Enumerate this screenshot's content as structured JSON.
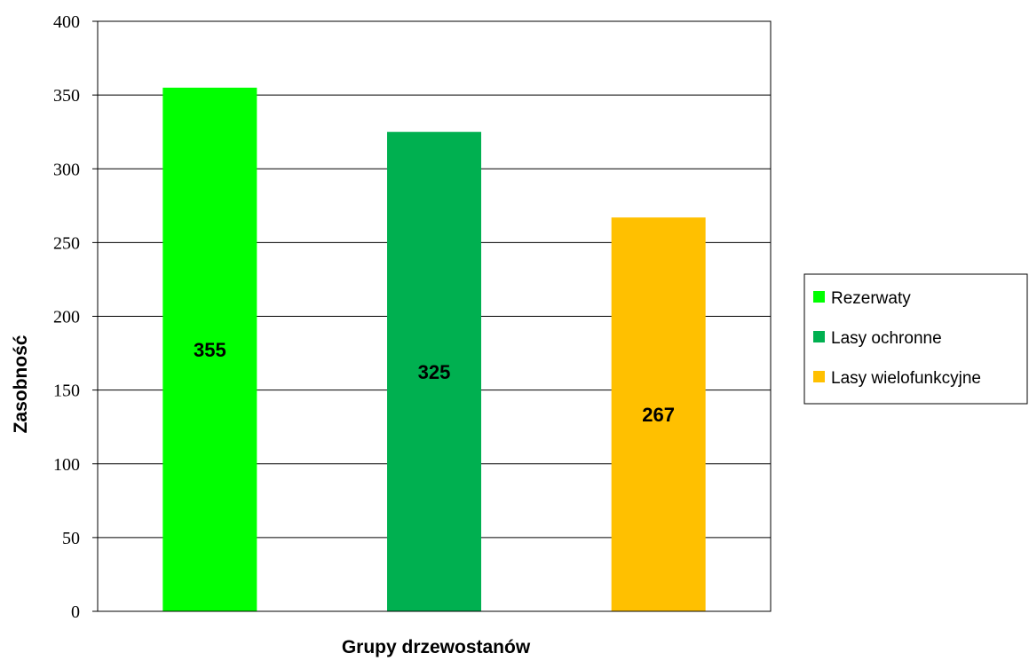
{
  "chart_data": {
    "type": "bar",
    "title": "",
    "xlabel": "Grupy drzewostanów",
    "ylabel": "Zasobność",
    "ylim": [
      0,
      400
    ],
    "yticks": [
      0,
      50,
      100,
      150,
      200,
      250,
      300,
      350,
      400
    ],
    "grid": true,
    "legend_position": "right",
    "categories": [
      "Rezerwaty",
      "Lasy ochronne",
      "Lasy wielofunkcyjne"
    ],
    "values": [
      355,
      325,
      267
    ],
    "colors": [
      "#00ff00",
      "#00b050",
      "#ffc000"
    ],
    "data_labels": [
      "355",
      "325",
      "267"
    ]
  }
}
